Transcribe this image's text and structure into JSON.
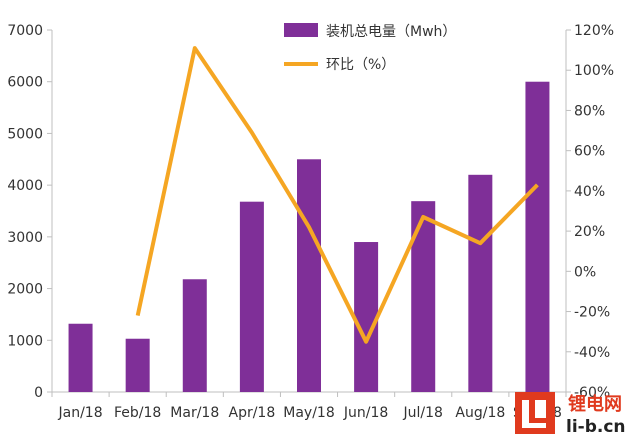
{
  "chart_data": {
    "type": "bar",
    "categories": [
      "Jan/18",
      "Feb/18",
      "Mar/18",
      "Apr/18",
      "May/18",
      "Jun/18",
      "Jul/18",
      "Aug/18",
      "Sep/18"
    ],
    "series": [
      {
        "name": "装机总电量（Mwh）",
        "type": "bar",
        "axis": "left",
        "color": "#7F2F98",
        "values": [
          1320,
          1030,
          2180,
          3680,
          4500,
          2900,
          3690,
          4200,
          6000
        ]
      },
      {
        "name": "环比（%）",
        "type": "line",
        "axis": "right",
        "color": "#F5A623",
        "values": [
          null,
          -22,
          111,
          69,
          22,
          -35,
          27,
          14,
          43
        ]
      }
    ],
    "y_left": {
      "min": 0,
      "max": 7000,
      "ticks": [
        0,
        1000,
        2000,
        3000,
        4000,
        5000,
        6000,
        7000
      ],
      "tick_labels": [
        "0",
        "1000",
        "2000",
        "3000",
        "4000",
        "5000",
        "6000",
        "7000"
      ]
    },
    "y_right": {
      "min": -60,
      "max": 120,
      "ticks": [
        -60,
        -40,
        -20,
        0,
        20,
        40,
        60,
        80,
        100,
        120
      ],
      "tick_labels": [
        "-60%",
        "-40%",
        "-20%",
        "0%",
        "20%",
        "40%",
        "60%",
        "80%",
        "100%",
        "120%"
      ]
    },
    "grid": false,
    "legend_position": "top-center"
  },
  "watermark": {
    "logo_text": "锂电网",
    "url_text": "li-b.cn",
    "logo_color": "#E03A1E"
  }
}
